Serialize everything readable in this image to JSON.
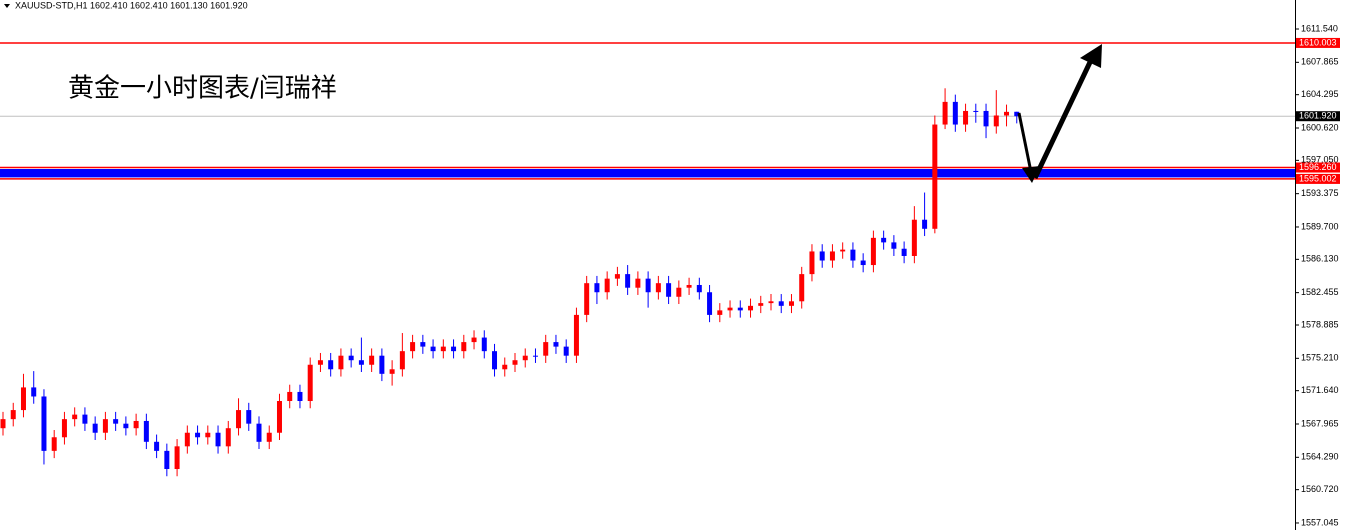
{
  "chart_data": {
    "type": "candlestick",
    "title": "XAUUSD-STD,H1  1602.410 1602.410 1601.130 1601.920",
    "annotation": "黄金一小时图表/闫瑞祥",
    "up_color": "#ff0000",
    "down_color": "#0000ff",
    "ylim": [
      1556.27,
      1614.74
    ],
    "yticks": [
      {
        "value": 1611.54,
        "label": "1611.540"
      },
      1607.865,
      1604.295,
      {
        "value": 1600.62,
        "label": "1600.620"
      },
      {
        "value": 1597.05,
        "label": "1597.050"
      },
      1593.375,
      {
        "value": 1589.7,
        "label": "1589.700"
      },
      {
        "value": 1586.13,
        "label": "1586.130"
      },
      1582.455,
      1578.885,
      {
        "value": 1575.21,
        "label": "1575.210"
      },
      {
        "value": 1571.64,
        "label": "1571.640"
      },
      1567.965,
      {
        "value": 1564.29,
        "label": "1564.290"
      },
      {
        "value": 1560.72,
        "label": "1560.720"
      },
      1557.045
    ],
    "levels": [
      {
        "value": 1610.003,
        "label": "1610.003",
        "color": "#ff0000"
      },
      {
        "value": 1596.26,
        "label": "1596.260",
        "color": "#ff0000"
      },
      {
        "value": 1595.002,
        "label": "1595.002",
        "color": "#ff0000"
      }
    ],
    "current_price": {
      "value": 1601.92,
      "label": "1601.920"
    },
    "series": [
      {
        "open": [
          1567.5,
          1568.5,
          1569.5,
          1572,
          1571,
          1565,
          1566.5,
          1568.5,
          1569,
          1568,
          1567,
          1568.5,
          1568,
          1567.5,
          1568.3,
          1566,
          1565,
          1563,
          1565.5,
          1567,
          1566.5,
          1567,
          1565.5,
          1567.5,
          1569.5,
          1568,
          1566,
          1567,
          1570.5,
          1571.5,
          1570.5,
          1574.5,
          1575,
          1574,
          1575.5,
          1575,
          1574.5,
          1575.5,
          1573.5,
          1574,
          1576,
          1577,
          1576.5,
          1576,
          1576.5,
          1576,
          1577,
          1577.5,
          1576,
          1574,
          1574.5,
          1575,
          1575.5,
          1575.5,
          1577,
          1576.5,
          1575.5,
          1580,
          1583.5,
          1582.5,
          1584,
          1584.5,
          1583,
          1584,
          1582.5,
          1583.5,
          1582,
          1583,
          1583.3,
          1582.5,
          1580,
          1580.5,
          1580.8,
          1580.5,
          1581,
          1581.3,
          1581.5,
          1581,
          1581.5,
          1584.5,
          1587,
          1586,
          1587,
          1587.2,
          1586,
          1585.5,
          1588.5,
          1588,
          1587.3,
          1586.5,
          1590.5,
          1589.5,
          1601,
          1603.5,
          1601,
          1602.5,
          1602.5,
          1600.8,
          1602,
          1602.41
        ],
        "high": [
          1569.3,
          1570.3,
          1573.5,
          1573.8,
          1571.8,
          1567.3,
          1569.3,
          1569.8,
          1569.8,
          1568.8,
          1569.3,
          1569.3,
          1568.8,
          1569.1,
          1569.1,
          1566.8,
          1565.8,
          1566.3,
          1567.8,
          1567.8,
          1567.8,
          1567.8,
          1568.3,
          1570.8,
          1570.3,
          1568.8,
          1567.8,
          1571.3,
          1572.3,
          1572.3,
          1575.3,
          1575.8,
          1575.8,
          1576.3,
          1576.3,
          1577.5,
          1576.3,
          1576.3,
          1575,
          1578,
          1577.8,
          1577.8,
          1577.3,
          1577.3,
          1577.3,
          1577.8,
          1578.3,
          1578.3,
          1576.8,
          1575.3,
          1575.8,
          1576.3,
          1576.3,
          1577.8,
          1577.8,
          1577.3,
          1580.8,
          1584.3,
          1584.3,
          1584.8,
          1585.3,
          1585.5,
          1584.8,
          1584.8,
          1584.3,
          1584.3,
          1583.8,
          1584.1,
          1584.1,
          1583.3,
          1581.3,
          1581.6,
          1581.6,
          1581.8,
          1582.1,
          1582.3,
          1582.3,
          1582.3,
          1585.3,
          1587.8,
          1587.8,
          1587.8,
          1588,
          1588,
          1586.8,
          1589.3,
          1589.3,
          1588.8,
          1588.1,
          1592,
          1593.5,
          1602,
          1605,
          1604.3,
          1603.3,
          1603.3,
          1603.3,
          1604.8,
          1603.2,
          1602.41
        ],
        "low": [
          1566.7,
          1567.7,
          1568.7,
          1570.2,
          1563.5,
          1564.2,
          1565.7,
          1567.7,
          1567.2,
          1566.2,
          1566.2,
          1567.2,
          1566.7,
          1566.7,
          1565.2,
          1564.2,
          1562.2,
          1562.2,
          1564.7,
          1565.7,
          1565.7,
          1564.7,
          1564.7,
          1566.7,
          1567.2,
          1565.2,
          1565.2,
          1566.2,
          1569.7,
          1569.7,
          1569.7,
          1573.7,
          1573.2,
          1573.2,
          1574.2,
          1573.7,
          1573.7,
          1572.7,
          1572.2,
          1573.2,
          1575.2,
          1575.7,
          1575.2,
          1575.2,
          1575.2,
          1575.2,
          1576.2,
          1575.2,
          1573.2,
          1573.2,
          1573.7,
          1574.2,
          1574.7,
          1574.7,
          1575.7,
          1574.7,
          1574.7,
          1579.2,
          1581.2,
          1581.7,
          1583.2,
          1582.2,
          1582.2,
          1580.8,
          1581.7,
          1581.2,
          1581.2,
          1582.2,
          1581.7,
          1579.2,
          1579.2,
          1579.7,
          1579.7,
          1579.7,
          1580.2,
          1580.5,
          1580.2,
          1580.2,
          1580.7,
          1583.7,
          1585.2,
          1585.2,
          1586.2,
          1585.2,
          1584.7,
          1584.7,
          1587.2,
          1586.5,
          1585.7,
          1585.7,
          1588.7,
          1589,
          1600.5,
          1600.2,
          1600.2,
          1601.2,
          1599.5,
          1600,
          1600.8,
          1601.13
        ],
        "close": [
          1568.5,
          1569.5,
          1572,
          1571,
          1565,
          1566.5,
          1568.5,
          1569,
          1568,
          1567,
          1568.5,
          1568,
          1567.5,
          1568.3,
          1566,
          1565,
          1563,
          1565.5,
          1567,
          1566.5,
          1567,
          1565.5,
          1567.5,
          1569.5,
          1568,
          1566,
          1567,
          1570.5,
          1571.5,
          1570.5,
          1574.5,
          1575,
          1574,
          1575.5,
          1575,
          1574.5,
          1575.5,
          1573.5,
          1574,
          1576,
          1577,
          1576.5,
          1576,
          1576.5,
          1576,
          1577,
          1577.5,
          1576,
          1574,
          1574.5,
          1575,
          1575.5,
          1575.5,
          1577,
          1576.5,
          1575.5,
          1580,
          1583.5,
          1582.5,
          1584,
          1584.5,
          1583,
          1584,
          1582.5,
          1583.5,
          1582,
          1583,
          1583.3,
          1582.5,
          1580,
          1580.5,
          1580.8,
          1580.5,
          1581,
          1581.3,
          1581.5,
          1581,
          1581.5,
          1584.5,
          1587,
          1586,
          1587,
          1587.2,
          1586,
          1585.5,
          1588.5,
          1588,
          1587.3,
          1586.5,
          1590.5,
          1589.5,
          1601,
          1603.5,
          1601,
          1602.5,
          1602.5,
          1600.8,
          1602,
          1602.4,
          1601.92
        ]
      }
    ]
  }
}
